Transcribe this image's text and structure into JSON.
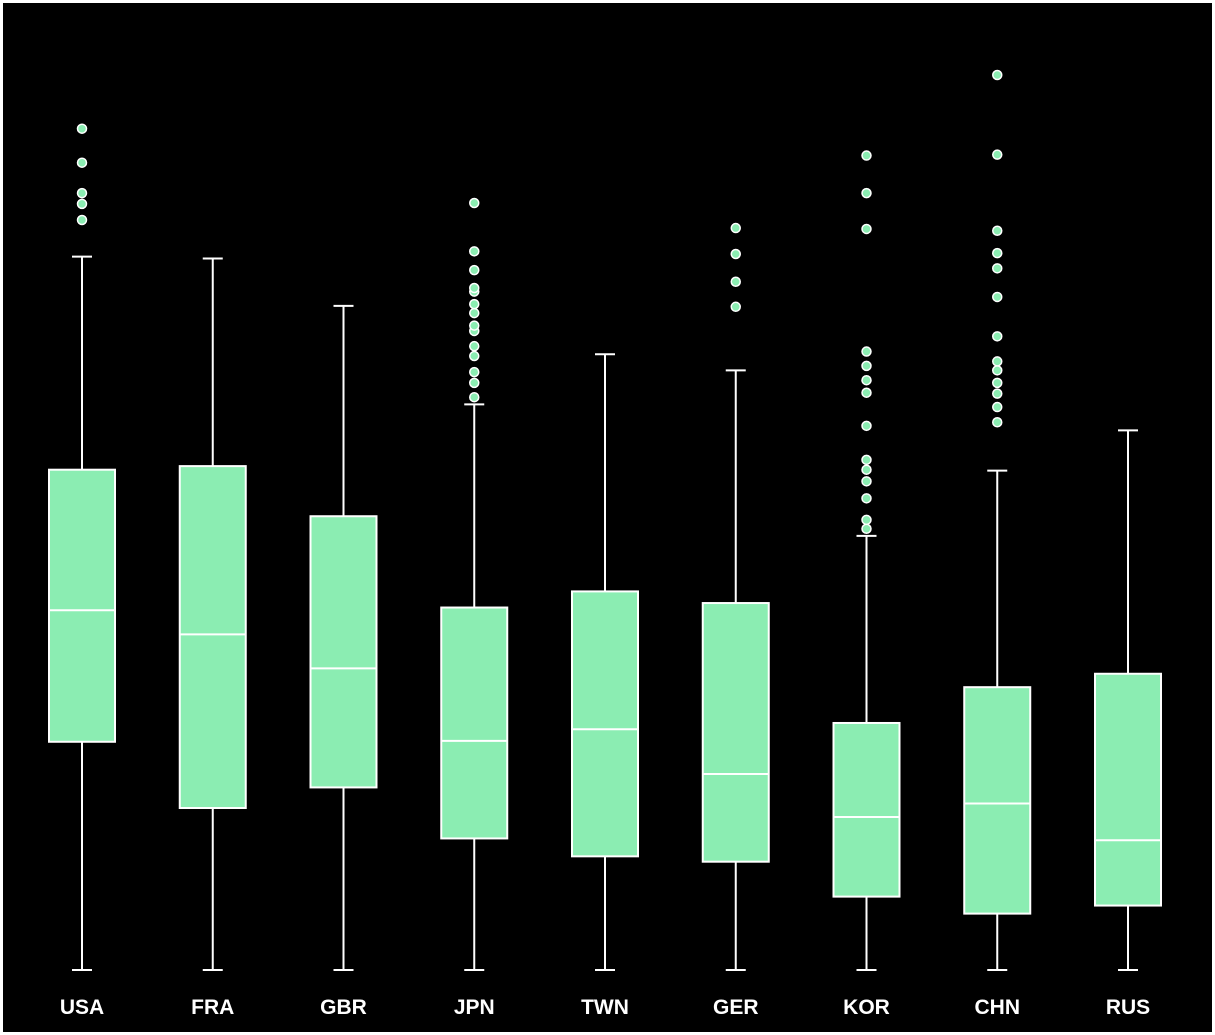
{
  "chart_data": {
    "type": "box",
    "title": "",
    "xlabel": "",
    "ylabel": "",
    "y_axis_shown": false,
    "grid": false,
    "legend": "none",
    "ylim": [
      0,
      1
    ],
    "colors": {
      "background": "#000000",
      "box_fill": "#8BEDB2",
      "lines": "#ffffff",
      "outlier_fill": "#8BEDB2",
      "outlier_stroke": "#ffffff",
      "labels": "#ffffff"
    },
    "categories": [
      "USA",
      "FRA",
      "GBR",
      "JPN",
      "TWN",
      "GER",
      "KOR",
      "CHN",
      "RUS"
    ],
    "boxes": [
      {
        "label": "USA",
        "whisker_low": 0.0,
        "q1": 0.255,
        "median": 0.402,
        "q3": 0.559,
        "whisker_high": 0.797,
        "outliers": [
          0.838,
          0.856,
          0.868,
          0.902,
          0.94
        ]
      },
      {
        "label": "FRA",
        "whisker_low": 0.0,
        "q1": 0.181,
        "median": 0.375,
        "q3": 0.563,
        "whisker_high": 0.795,
        "outliers": []
      },
      {
        "label": "GBR",
        "whisker_low": 0.0,
        "q1": 0.204,
        "median": 0.337,
        "q3": 0.507,
        "whisker_high": 0.742,
        "outliers": []
      },
      {
        "label": "JPN",
        "whisker_low": 0.0,
        "q1": 0.147,
        "median": 0.256,
        "q3": 0.405,
        "whisker_high": 0.632,
        "outliers": [
          0.64,
          0.656,
          0.668,
          0.686,
          0.697,
          0.714,
          0.72,
          0.734,
          0.744,
          0.758,
          0.762,
          0.782,
          0.803,
          0.857
        ]
      },
      {
        "label": "TWN",
        "whisker_low": 0.0,
        "q1": 0.127,
        "median": 0.269,
        "q3": 0.423,
        "whisker_high": 0.688,
        "outliers": []
      },
      {
        "label": "GER",
        "whisker_low": 0.0,
        "q1": 0.121,
        "median": 0.219,
        "q3": 0.41,
        "whisker_high": 0.67,
        "outliers": [
          0.741,
          0.769,
          0.8,
          0.829
        ]
      },
      {
        "label": "KOR",
        "whisker_low": 0.0,
        "q1": 0.082,
        "median": 0.171,
        "q3": 0.276,
        "whisker_high": 0.485,
        "outliers": [
          0.493,
          0.503,
          0.527,
          0.546,
          0.559,
          0.57,
          0.608,
          0.645,
          0.659,
          0.675,
          0.691,
          0.828,
          0.868,
          0.91
        ]
      },
      {
        "label": "CHN",
        "whisker_low": 0.0,
        "q1": 0.063,
        "median": 0.186,
        "q3": 0.316,
        "whisker_high": 0.558,
        "outliers": [
          0.612,
          0.629,
          0.644,
          0.656,
          0.67,
          0.68,
          0.708,
          0.752,
          0.784,
          0.801,
          0.826,
          0.911,
          1.0
        ]
      },
      {
        "label": "RUS",
        "whisker_low": 0.0,
        "q1": 0.072,
        "median": 0.145,
        "q3": 0.331,
        "whisker_high": 0.603,
        "outliers": []
      }
    ]
  }
}
